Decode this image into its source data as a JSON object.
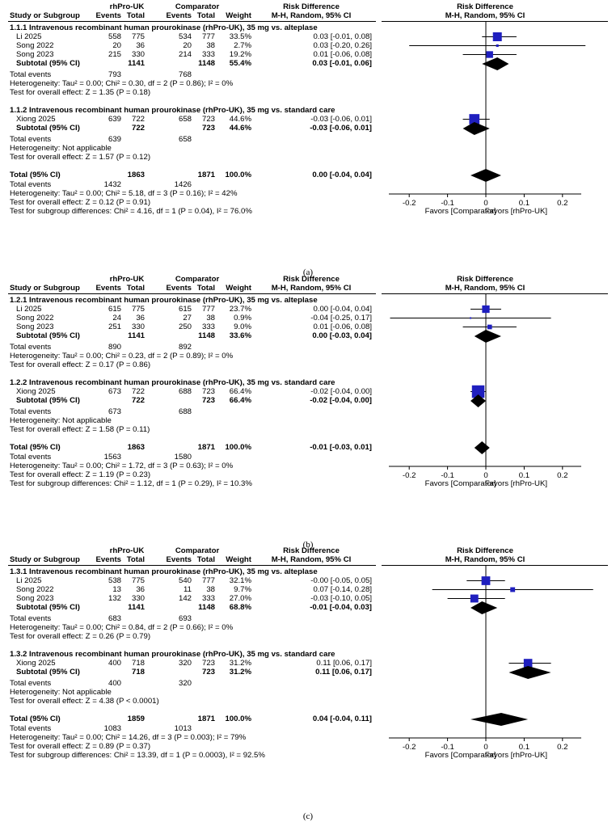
{
  "header": {
    "study": "Study or Subgroup",
    "group1": "rhPro-UK",
    "group2": "Comparator",
    "events": "Events",
    "total": "Total",
    "weight": "Weight",
    "effect_title": "Risk Difference",
    "effect_method": "M-H, Random, 95% CI",
    "plot_title": "Risk Difference",
    "plot_method": "M-H, Random, 95% CI"
  },
  "axis": {
    "ticks": [
      "-0.2",
      "-0.1",
      "0",
      "0.1",
      "0.2"
    ],
    "favors_left": "Favors [Comparator]",
    "favors_right": "Favors [rhPro-UK]"
  },
  "chart_data": [
    {
      "type": "forest",
      "caption": "(a)",
      "xlim": [
        -0.2,
        0.2
      ],
      "subgroups": [
        {
          "title": "1.1.1 Intravenous recombinant human prourokinase (rhPro-UK), 35 mg vs. alteplase",
          "studies": [
            {
              "name": "Li 2025",
              "e1": "558",
              "n1": "775",
              "e2": "534",
              "n2": "777",
              "weight": "33.5%",
              "ci": "0.03 [-0.01, 0.08]",
              "est": 0.03,
              "lo": -0.01,
              "hi": 0.08,
              "w": 33.5
            },
            {
              "name": "Song 2022",
              "e1": "20",
              "n1": "36",
              "e2": "20",
              "n2": "38",
              "weight": "2.7%",
              "ci": "0.03 [-0.20, 0.26]",
              "est": 0.03,
              "lo": -0.2,
              "hi": 0.26,
              "w": 2.7
            },
            {
              "name": "Song 2023",
              "e1": "215",
              "n1": "330",
              "e2": "214",
              "n2": "333",
              "weight": "19.2%",
              "ci": "0.01 [-0.06, 0.08]",
              "est": 0.01,
              "lo": -0.06,
              "hi": 0.08,
              "w": 19.2
            }
          ],
          "subtotal": {
            "label": "Subtotal (95% CI)",
            "n1": "1141",
            "n2": "1148",
            "weight": "55.4%",
            "ci": "0.03 [-0.01, 0.06]",
            "est": 0.03,
            "lo": -0.01,
            "hi": 0.06
          },
          "events": {
            "label": "Total events",
            "e1": "793",
            "e2": "768"
          },
          "heterogeneity": "Heterogeneity: Tau² = 0.00; Chi² = 0.30, df = 2 (P = 0.86); I² = 0%",
          "overall": "Test for overall effect: Z = 1.35 (P = 0.18)"
        },
        {
          "title": "1.1.2 Intravenous recombinant human prourokinase (rhPro-UK), 35 mg vs. standard care",
          "studies": [
            {
              "name": "Xiong 2025",
              "e1": "639",
              "n1": "722",
              "e2": "658",
              "n2": "723",
              "weight": "44.6%",
              "ci": "-0.03 [-0.06, 0.01]",
              "est": -0.03,
              "lo": -0.06,
              "hi": 0.01,
              "w": 44.6
            }
          ],
          "subtotal": {
            "label": "Subtotal (95% CI)",
            "n1": "722",
            "n2": "723",
            "weight": "44.6%",
            "ci": "-0.03 [-0.06, 0.01]",
            "est": -0.03,
            "lo": -0.06,
            "hi": 0.01
          },
          "events": {
            "label": "Total events",
            "e1": "639",
            "e2": "658"
          },
          "heterogeneity": "Heterogeneity: Not applicable",
          "overall": "Test for overall effect: Z = 1.57 (P = 0.12)"
        }
      ],
      "total": {
        "label": "Total (95% CI)",
        "n1": "1863",
        "n2": "1871",
        "weight": "100.0%",
        "ci": "0.00 [-0.04, 0.04]",
        "est": 0.0,
        "lo": -0.04,
        "hi": 0.04
      },
      "total_events": {
        "label": "Total events",
        "e1": "1432",
        "e2": "1426"
      },
      "heterogeneity": "Heterogeneity: Tau² = 0.00; Chi² = 5.18, df = 3 (P = 0.16); I² = 42%",
      "overall": "Test for overall effect: Z = 0.12 (P = 0.91)",
      "subgroup_test": "Test for subgroup differences: Chi² = 4.16, df = 1 (P = 0.04), I² = 76.0%"
    },
    {
      "type": "forest",
      "caption": "(b)",
      "xlim": [
        -0.2,
        0.2
      ],
      "subgroups": [
        {
          "title": "1.2.1 Intravenous recombinant human prourokinase (rhPro-UK), 35 mg vs. alteplase",
          "studies": [
            {
              "name": "Li 2025",
              "e1": "615",
              "n1": "775",
              "e2": "615",
              "n2": "777",
              "weight": "23.7%",
              "ci": "0.00 [-0.04, 0.04]",
              "est": 0.0,
              "lo": -0.04,
              "hi": 0.04,
              "w": 23.7
            },
            {
              "name": "Song 2022",
              "e1": "24",
              "n1": "36",
              "e2": "27",
              "n2": "38",
              "weight": "0.9%",
              "ci": "-0.04 [-0.25, 0.17]",
              "est": -0.04,
              "lo": -0.25,
              "hi": 0.17,
              "w": 0.9
            },
            {
              "name": "Song 2023",
              "e1": "251",
              "n1": "330",
              "e2": "250",
              "n2": "333",
              "weight": "9.0%",
              "ci": "0.01 [-0.06, 0.08]",
              "est": 0.01,
              "lo": -0.06,
              "hi": 0.08,
              "w": 9.0
            }
          ],
          "subtotal": {
            "label": "Subtotal (95% CI)",
            "n1": "1141",
            "n2": "1148",
            "weight": "33.6%",
            "ci": "0.00 [-0.03, 0.04]",
            "est": 0.0,
            "lo": -0.03,
            "hi": 0.04
          },
          "events": {
            "label": "Total events",
            "e1": "890",
            "e2": "892"
          },
          "heterogeneity": "Heterogeneity: Tau² = 0.00; Chi² = 0.23, df = 2 (P = 0.89); I² = 0%",
          "overall": "Test for overall effect: Z = 0.17 (P = 0.86)"
        },
        {
          "title": "1.2.2 Intravenous recombinant human prourokinase (rhPro-UK), 35 mg vs. standard care",
          "studies": [
            {
              "name": "Xiong 2025",
              "e1": "673",
              "n1": "722",
              "e2": "688",
              "n2": "723",
              "weight": "66.4%",
              "ci": "-0.02 [-0.04, 0.00]",
              "est": -0.02,
              "lo": -0.04,
              "hi": 0.0,
              "w": 66.4
            }
          ],
          "subtotal": {
            "label": "Subtotal (95% CI)",
            "n1": "722",
            "n2": "723",
            "weight": "66.4%",
            "ci": "-0.02 [-0.04, 0.00]",
            "est": -0.02,
            "lo": -0.04,
            "hi": 0.0
          },
          "events": {
            "label": "Total events",
            "e1": "673",
            "e2": "688"
          },
          "heterogeneity": "Heterogeneity: Not applicable",
          "overall": "Test for overall effect: Z = 1.58 (P = 0.11)"
        }
      ],
      "total": {
        "label": "Total (95% CI)",
        "n1": "1863",
        "n2": "1871",
        "weight": "100.0%",
        "ci": "-0.01 [-0.03, 0.01]",
        "est": -0.01,
        "lo": -0.03,
        "hi": 0.01
      },
      "total_events": {
        "label": "Total events",
        "e1": "1563",
        "e2": "1580"
      },
      "heterogeneity": "Heterogeneity: Tau² = 0.00; Chi² = 1.72, df = 3 (P = 0.63); I² = 0%",
      "overall": "Test for overall effect: Z = 1.19 (P = 0.23)",
      "subgroup_test": "Test for subgroup differences: Chi² = 1.12, df = 1 (P = 0.29), I² = 10.3%"
    },
    {
      "type": "forest",
      "caption": "(c)",
      "xlim": [
        -0.2,
        0.2
      ],
      "subgroups": [
        {
          "title": "1.3.1 Intravenous recombinant human prourokinase (rhPro-UK), 35 mg vs. alteplase",
          "studies": [
            {
              "name": "Li 2025",
              "e1": "538",
              "n1": "775",
              "e2": "540",
              "n2": "777",
              "weight": "32.1%",
              "ci": "-0.00 [-0.05, 0.05]",
              "est": 0.0,
              "lo": -0.05,
              "hi": 0.05,
              "w": 32.1
            },
            {
              "name": "Song 2022",
              "e1": "13",
              "n1": "36",
              "e2": "11",
              "n2": "38",
              "weight": "9.7%",
              "ci": "0.07 [-0.14, 0.28]",
              "est": 0.07,
              "lo": -0.14,
              "hi": 0.28,
              "w": 9.7
            },
            {
              "name": "Song 2023",
              "e1": "132",
              "n1": "330",
              "e2": "142",
              "n2": "333",
              "weight": "27.0%",
              "ci": "-0.03 [-0.10, 0.05]",
              "est": -0.03,
              "lo": -0.1,
              "hi": 0.05,
              "w": 27.0
            }
          ],
          "subtotal": {
            "label": "Subtotal (95% CI)",
            "n1": "1141",
            "n2": "1148",
            "weight": "68.8%",
            "ci": "-0.01 [-0.04, 0.03]",
            "est": -0.01,
            "lo": -0.04,
            "hi": 0.03
          },
          "events": {
            "label": "Total events",
            "e1": "683",
            "e2": "693"
          },
          "heterogeneity": "Heterogeneity: Tau² = 0.00; Chi² = 0.84, df = 2 (P = 0.66); I² = 0%",
          "overall": "Test for overall effect: Z = 0.26 (P = 0.79)"
        },
        {
          "title": "1.3.2 Intravenous recombinant human prourokinase (rhPro-UK), 35 mg vs. standard care",
          "studies": [
            {
              "name": "Xiong 2025",
              "e1": "400",
              "n1": "718",
              "e2": "320",
              "n2": "723",
              "weight": "31.2%",
              "ci": "0.11 [0.06, 0.17]",
              "est": 0.11,
              "lo": 0.06,
              "hi": 0.17,
              "w": 31.2
            }
          ],
          "subtotal": {
            "label": "Subtotal (95% CI)",
            "n1": "718",
            "n2": "723",
            "weight": "31.2%",
            "ci": "0.11 [0.06, 0.17]",
            "est": 0.11,
            "lo": 0.06,
            "hi": 0.17
          },
          "events": {
            "label": "Total events",
            "e1": "400",
            "e2": "320"
          },
          "heterogeneity": "Heterogeneity: Not applicable",
          "overall": "Test for overall effect: Z = 4.38 (P < 0.0001)"
        }
      ],
      "total": {
        "label": "Total (95% CI)",
        "n1": "1859",
        "n2": "1871",
        "weight": "100.0%",
        "ci": "0.04 [-0.04, 0.11]",
        "est": 0.04,
        "lo": -0.04,
        "hi": 0.11
      },
      "total_events": {
        "label": "Total events",
        "e1": "1083",
        "e2": "1013"
      },
      "heterogeneity": "Heterogeneity: Tau² = 0.00; Chi² = 14.26, df = 3 (P = 0.003); I² = 79%",
      "overall": "Test for overall effect: Z = 0.89 (P = 0.37)",
      "subgroup_test": "Test for subgroup differences: Chi² = 13.39, df = 1 (P = 0.0003), I² = 92.5%"
    }
  ],
  "colors": {
    "square": "#1f1fbf",
    "diamond": "#000000",
    "line": "#000000"
  }
}
